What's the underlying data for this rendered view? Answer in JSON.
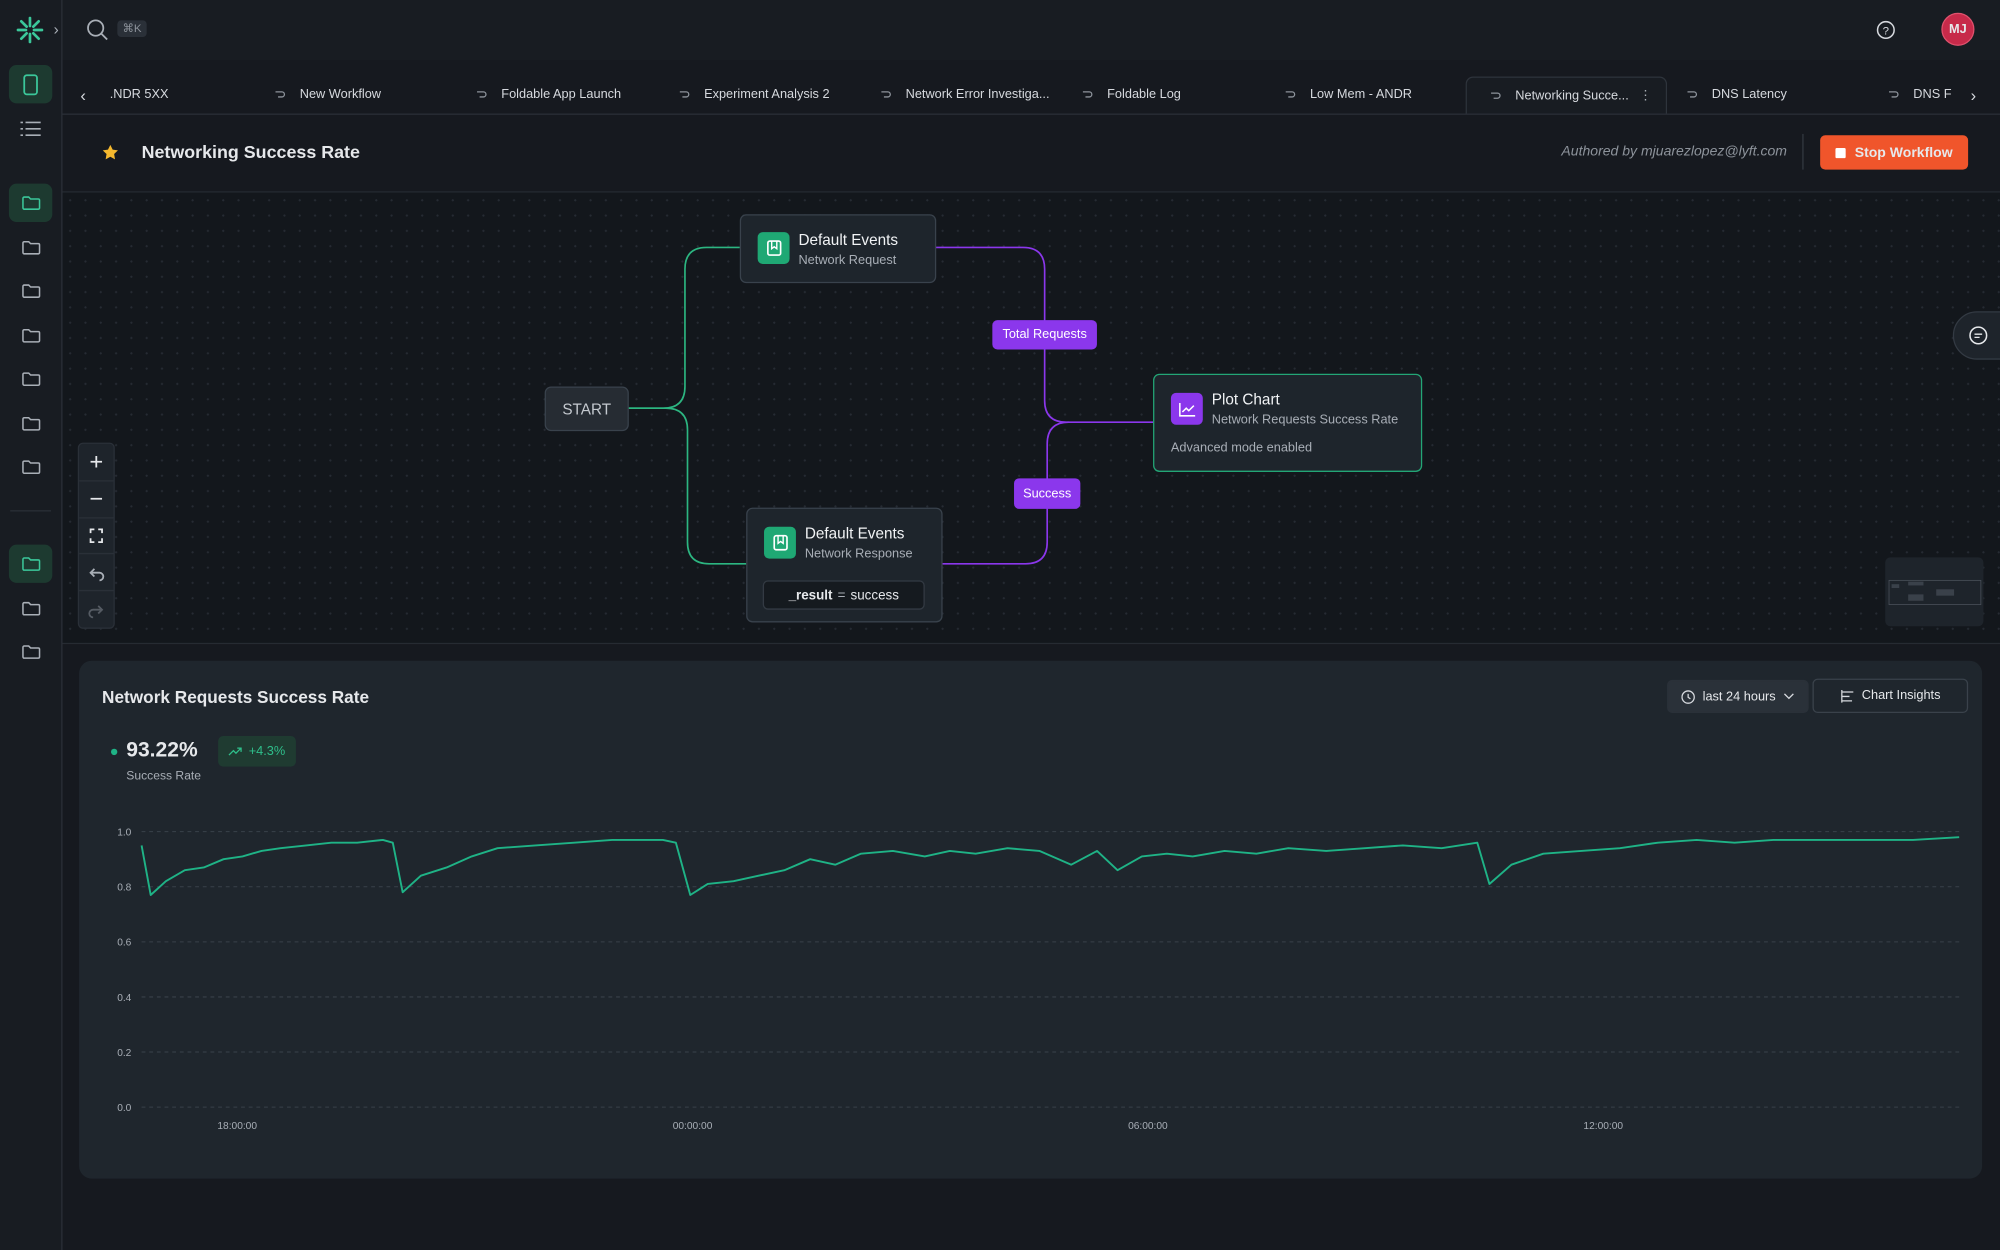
{
  "topbar": {
    "search_shortcut": "⌘K",
    "avatar": "MJ"
  },
  "tabs": [
    ".NDR 5XX",
    "New Workflow",
    "Foldable App Launch",
    "Experiment Analysis 2",
    "Network Error Investiga...",
    "Foldable Log",
    "Low Mem - ANDR",
    "Networking Succe...",
    "DNS Latency",
    "DNS F"
  ],
  "header": {
    "title": "Networking Success Rate",
    "author": "Authored by mjuarezlopez@lyft.com",
    "button": "Stop Workflow"
  },
  "workflow": {
    "start": "START",
    "nodes": [
      {
        "title": "Default Events",
        "subtitle": "Network Request"
      },
      {
        "title": "Default Events",
        "subtitle": "Network Response",
        "filter_key": "_result",
        "filter_op": "=",
        "filter_value": "success"
      },
      {
        "title": "Plot Chart",
        "subtitle": "Network Requests Success Rate",
        "note": "Advanced mode enabled"
      }
    ],
    "edge_labels": [
      "Total Requests",
      "Success"
    ]
  },
  "chart_panel": {
    "range": "last 24 hours",
    "insights": "Chart Insights",
    "stat": "93.22%",
    "change": "+4.3%",
    "stat_label": "Success Rate"
  },
  "chart_data": {
    "type": "line",
    "title": "Network Requests Success Rate",
    "color": "#1fb386",
    "grid": true,
    "x": [
      16.74,
      16.86,
      17.06,
      17.31,
      17.56,
      17.82,
      18.07,
      18.32,
      18.57,
      18.91,
      19.24,
      19.58,
      19.92,
      20.05,
      20.18,
      20.42,
      20.76,
      21.09,
      21.43,
      21.93,
      22.44,
      22.94,
      23.61,
      23.78,
      23.97,
      24.2,
      24.54,
      24.87,
      25.21,
      25.55,
      25.88,
      26.22,
      26.64,
      27.06,
      27.39,
      27.73,
      28.15,
      28.57,
      28.99,
      29.33,
      29.6,
      29.92,
      30.25,
      30.59,
      31.01,
      31.43,
      31.85,
      32.35,
      32.86,
      33.36,
      33.87,
      34.34,
      34.5,
      34.79,
      35.21,
      35.71,
      36.22,
      36.72,
      37.23,
      37.73,
      38.24,
      38.74,
      39.41,
      40.08,
      40.69
    ],
    "values": [
      0.95,
      0.77,
      0.82,
      0.86,
      0.87,
      0.9,
      0.91,
      0.93,
      0.94,
      0.95,
      0.96,
      0.96,
      0.97,
      0.96,
      0.78,
      0.84,
      0.87,
      0.91,
      0.94,
      0.95,
      0.96,
      0.97,
      0.97,
      0.96,
      0.77,
      0.81,
      0.82,
      0.84,
      0.86,
      0.9,
      0.88,
      0.92,
      0.93,
      0.91,
      0.93,
      0.92,
      0.94,
      0.93,
      0.88,
      0.93,
      0.86,
      0.91,
      0.92,
      0.91,
      0.93,
      0.92,
      0.94,
      0.93,
      0.94,
      0.95,
      0.94,
      0.96,
      0.81,
      0.88,
      0.92,
      0.93,
      0.94,
      0.96,
      0.97,
      0.96,
      0.97,
      0.97,
      0.97,
      0.97,
      0.98
    ],
    "xlim": [
      16.74,
      40.69
    ],
    "xticks": [
      {
        "value": 18,
        "label": "18:00:00"
      },
      {
        "value": 24,
        "label": "00:00:00"
      },
      {
        "value": 30,
        "label": "06:00:00"
      },
      {
        "value": 36,
        "label": "12:00:00"
      }
    ],
    "ylim": [
      0,
      1
    ],
    "yticks": [
      {
        "value": 0,
        "label": "0.0"
      },
      {
        "value": 0.2,
        "label": "0.2"
      },
      {
        "value": 0.4,
        "label": "0.4"
      },
      {
        "value": 0.6,
        "label": "0.6"
      },
      {
        "value": 0.8,
        "label": "0.8"
      },
      {
        "value": 1,
        "label": "1.0"
      }
    ]
  }
}
